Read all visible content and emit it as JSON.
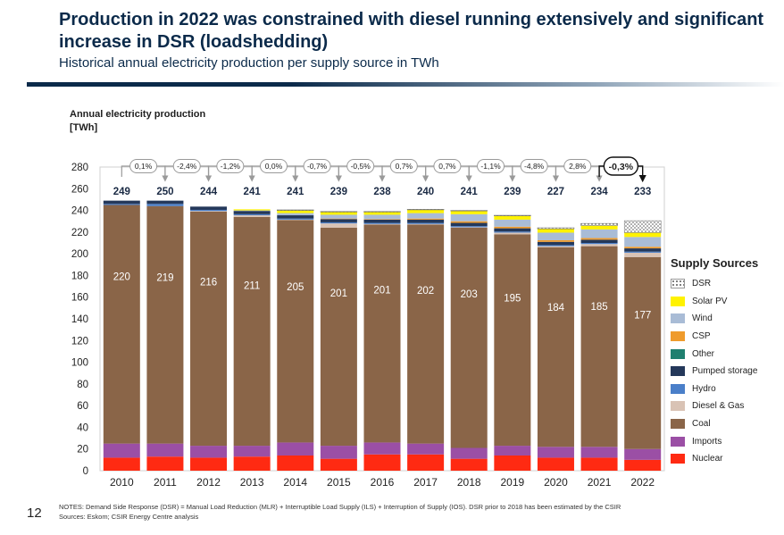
{
  "header": {
    "title": "Production in 2022 was constrained with diesel running extensively and significant increase in DSR (loadshedding)",
    "subtitle": "Historical annual electricity production per supply source in TWh"
  },
  "page_number": "12",
  "footnote": {
    "notes": "NOTES: Demand Side Response (DSR) = Manual Load Reduction (MLR) + Interruptible Load Supply (ILS) + Interruption of Supply (IOS). DSR prior to 2018  has been estimated by the CSIR",
    "sources": "Sources: Eskom; CSIR Energy Centre analysis"
  },
  "chart_data": {
    "type": "bar",
    "stacked": true,
    "ylabel": "Annual electricity  production\n[TWh]",
    "ylim": [
      0,
      280
    ],
    "yticks": [
      0,
      20,
      40,
      60,
      80,
      100,
      120,
      140,
      160,
      180,
      200,
      220,
      240,
      260,
      280
    ],
    "categories": [
      "2010",
      "2011",
      "2012",
      "2013",
      "2014",
      "2015",
      "2016",
      "2017",
      "2018",
      "2019",
      "2020",
      "2021",
      "2022"
    ],
    "totals": [
      "249",
      "250",
      "244",
      "241",
      "241",
      "239",
      "238",
      "240",
      "241",
      "239",
      "227",
      "234",
      "233"
    ],
    "coal_labels": [
      "220",
      "219",
      "216",
      "211",
      "205",
      "201",
      "201",
      "202",
      "203",
      "195",
      "184",
      "185",
      "177"
    ],
    "changes": [
      "0,1%",
      "-2,4%",
      "-1,2%",
      "0,0%",
      "-0,7%",
      "-0,5%",
      "0,7%",
      "0,7%",
      "-1,1%",
      "-4,8%",
      "2,8%",
      "-0,3%"
    ],
    "legend_title": "Supply Sources",
    "legend_position": "right",
    "grid": false,
    "series": [
      {
        "name": "Nuclear",
        "color": "#ff2a12",
        "values": [
          12,
          13,
          12,
          13,
          14,
          11,
          15,
          15,
          11,
          14,
          12,
          12,
          10
        ]
      },
      {
        "name": "Imports",
        "color": "#9b4fa5",
        "values": [
          13,
          12,
          11,
          10,
          12,
          12,
          11,
          10,
          10,
          9,
          10,
          10,
          10
        ]
      },
      {
        "name": "Coal",
        "color": "#8a6548",
        "values": [
          220,
          219,
          216,
          211,
          205,
          201,
          201,
          202,
          203,
          195,
          184,
          185,
          177
        ]
      },
      {
        "name": "Diesel & Gas",
        "color": "#d9c3b5",
        "values": [
          0,
          0,
          0.5,
          1.5,
          0.5,
          4,
          0.5,
          0.5,
          0.5,
          1.5,
          1,
          2,
          4
        ]
      },
      {
        "name": "Hydro",
        "color": "#4a7fc9",
        "values": [
          1,
          2,
          1,
          1,
          1,
          1,
          1,
          1,
          1,
          1,
          1,
          1,
          1
        ]
      },
      {
        "name": "Pumped storage",
        "color": "#24385a",
        "values": [
          3,
          3,
          3,
          3,
          3,
          3,
          3,
          3,
          3,
          3,
          3,
          3,
          3
        ]
      },
      {
        "name": "Other",
        "color": "#1f7f6f",
        "values": [
          0,
          0,
          0,
          0,
          0,
          0,
          0,
          0,
          0,
          0,
          0,
          0,
          0
        ]
      },
      {
        "name": "CSP",
        "color": "#ef9b2c",
        "values": [
          0,
          0,
          0,
          0,
          0,
          0.5,
          0.5,
          1,
          1.5,
          1.5,
          1.5,
          1.5,
          1.5
        ]
      },
      {
        "name": "Wind",
        "color": "#a9bcd6",
        "values": [
          0,
          0,
          0,
          0.5,
          2,
          3.5,
          4,
          5,
          6.5,
          6.5,
          7,
          8,
          9
        ]
      },
      {
        "name": "Solar PV",
        "color": "#fff200",
        "values": [
          0,
          0,
          0,
          1,
          2.5,
          2.5,
          2.5,
          3,
          3,
          3.5,
          3.5,
          3.5,
          4
        ]
      },
      {
        "name": "DSR",
        "color": "#f2f2f2",
        "pattern": "dotted",
        "values": [
          0,
          0,
          0,
          0,
          0.5,
          0.5,
          0.5,
          0.5,
          0.5,
          0.5,
          1,
          2,
          11
        ]
      }
    ]
  }
}
